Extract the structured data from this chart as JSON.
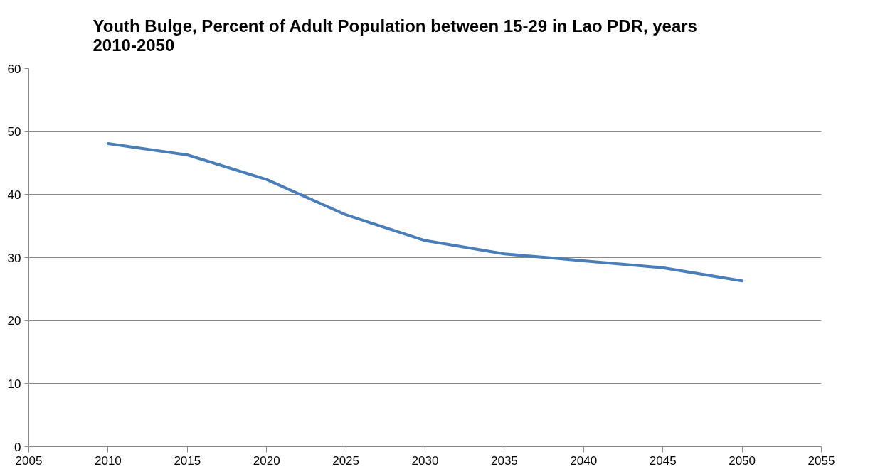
{
  "chart_data": {
    "type": "line",
    "title": "Youth Bulge, Percent of Adult Population between 15-29 in Lao PDR, years 2010-2050",
    "x": [
      2010,
      2015,
      2020,
      2025,
      2030,
      2035,
      2040,
      2045,
      2050
    ],
    "series": [
      {
        "color": "#4a7ebb",
        "values": [
          48.1,
          46.3,
          42.4,
          36.8,
          32.7,
          30.6,
          29.5,
          28.4,
          26.3
        ]
      }
    ],
    "xlim": [
      2005,
      2055
    ],
    "xticks": [
      2005,
      2010,
      2015,
      2020,
      2025,
      2030,
      2035,
      2040,
      2045,
      2050,
      2055
    ],
    "ylim": [
      0,
      60
    ],
    "yticks": [
      0,
      10,
      20,
      30,
      40,
      50,
      60
    ],
    "grid": "y",
    "marker": "none",
    "line_style": "solid"
  }
}
